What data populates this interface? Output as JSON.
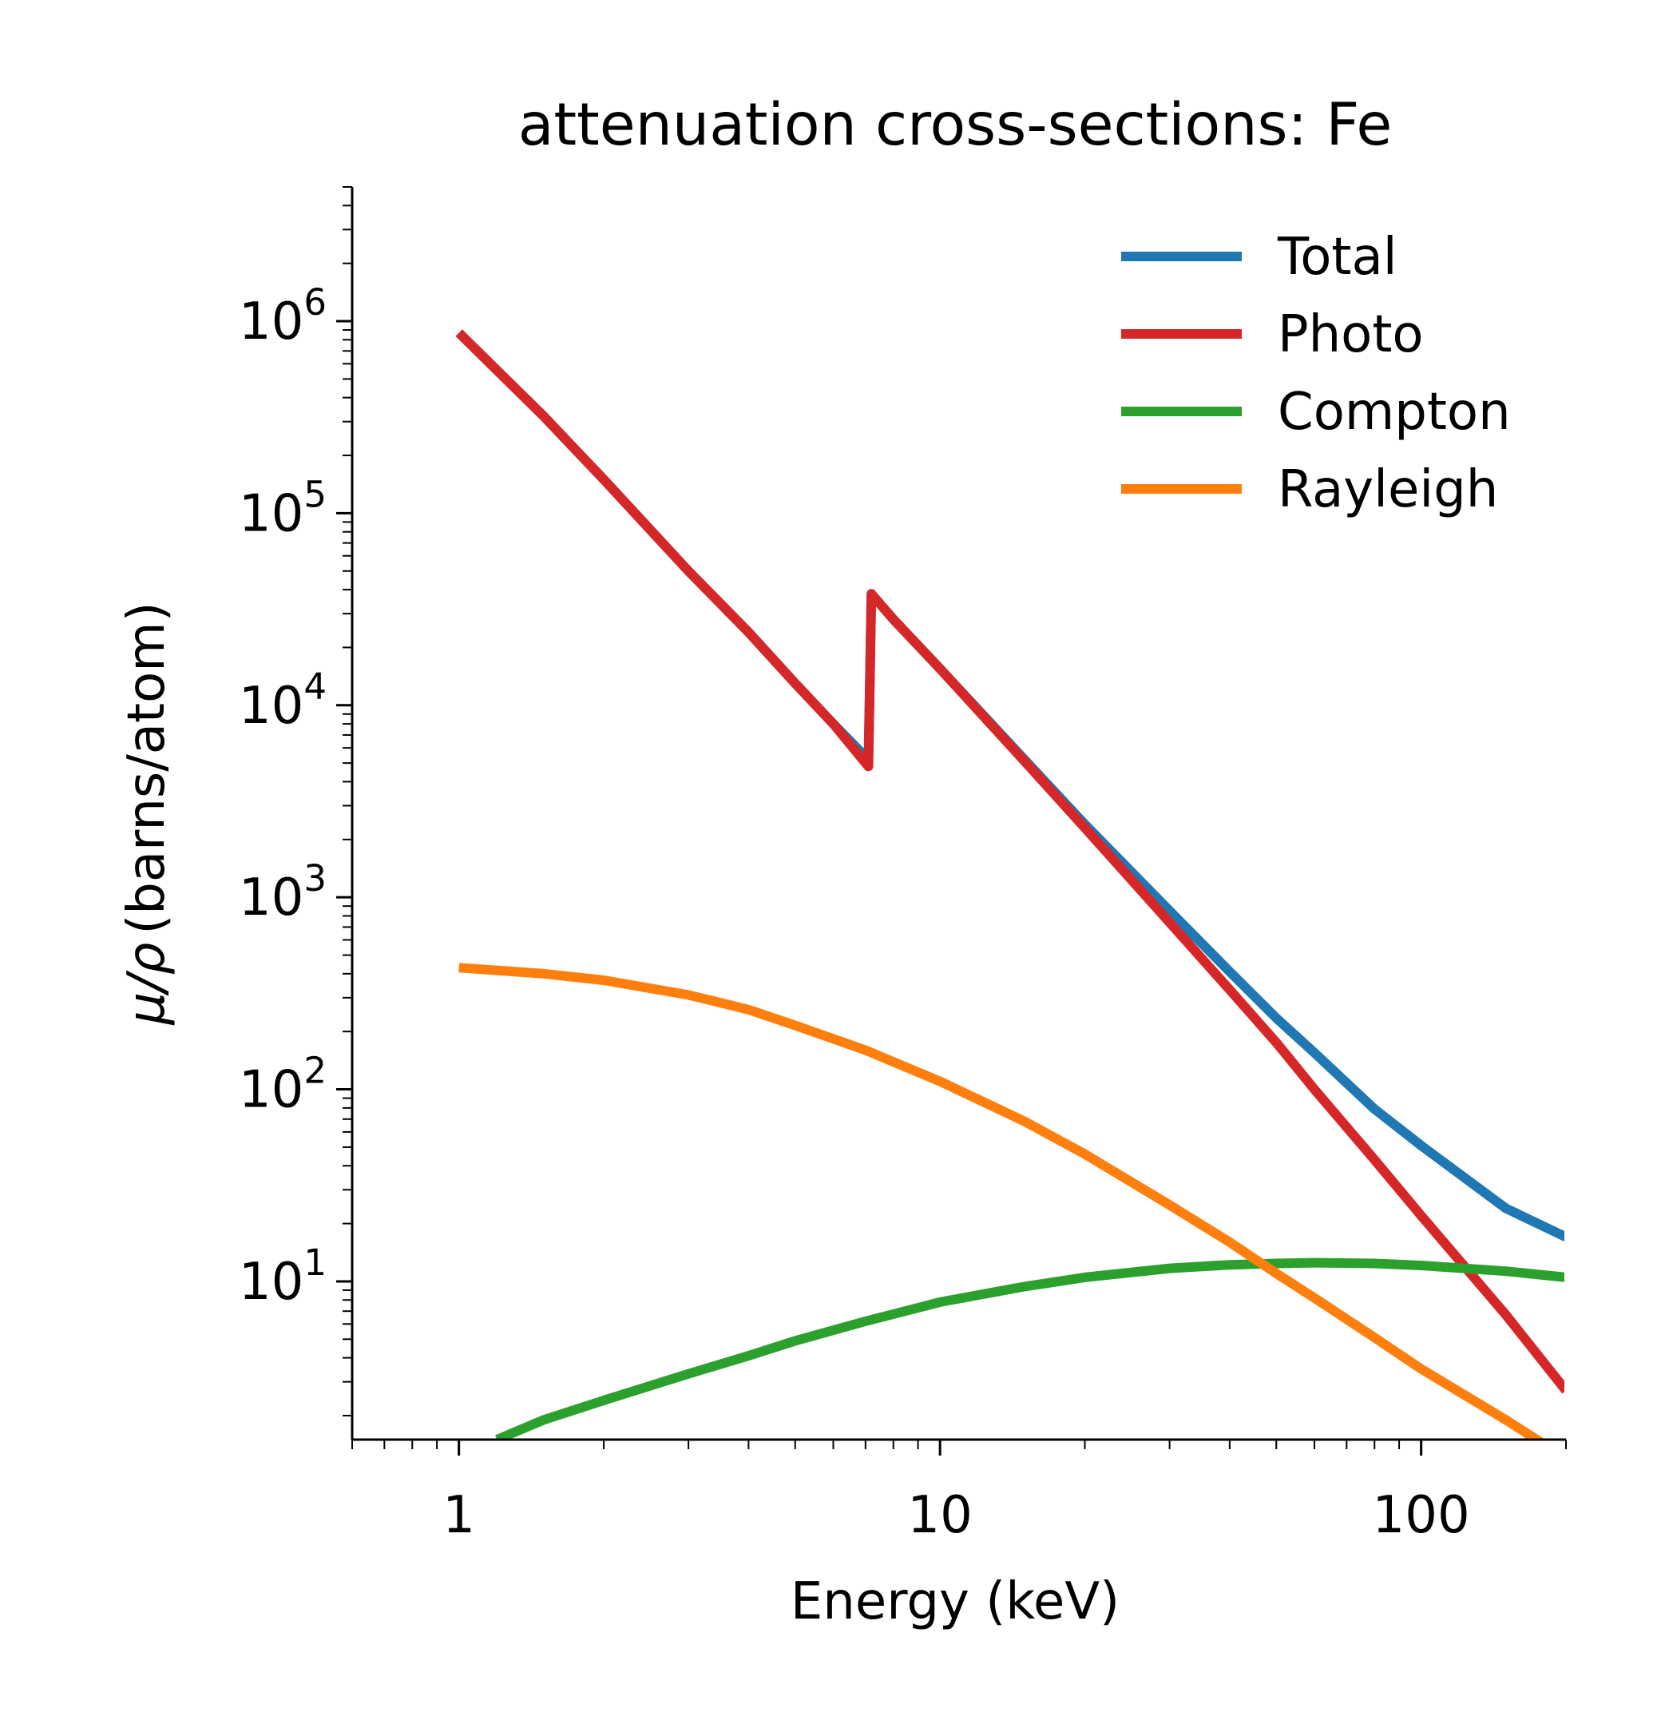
{
  "chart_data": {
    "type": "line",
    "title": "attenuation cross-sections: Fe",
    "xlabel": "Energy (keV)",
    "ylabel_main": "μ/ρ",
    "ylabel_unit": "(barns/atom)",
    "xscale": "log",
    "yscale": "log",
    "xlim": [
      0.6,
      200
    ],
    "ylim": [
      1.5,
      5000000
    ],
    "x_ticks": [
      {
        "value": 1,
        "label": "1"
      },
      {
        "value": 10,
        "label": "10"
      },
      {
        "value": 100,
        "label": "100"
      }
    ],
    "y_ticks": [
      {
        "value": 10,
        "base": "10",
        "exp": "1"
      },
      {
        "value": 100,
        "base": "10",
        "exp": "2"
      },
      {
        "value": 1000,
        "base": "10",
        "exp": "3"
      },
      {
        "value": 10000,
        "base": "10",
        "exp": "4"
      },
      {
        "value": 100000,
        "base": "10",
        "exp": "5"
      },
      {
        "value": 1000000,
        "base": "10",
        "exp": "6"
      }
    ],
    "grid": false,
    "legend_position": "top-right",
    "series": [
      {
        "name": "Total",
        "color": "#1f77b4",
        "x": [
          1,
          1.5,
          2,
          3,
          4,
          5,
          6,
          7.1,
          7.2,
          8,
          10,
          15,
          20,
          30,
          40,
          50,
          60,
          80,
          100,
          150,
          200
        ],
        "y": [
          870000,
          320000,
          150000,
          50000,
          24000,
          13000,
          8000,
          5200,
          38000,
          28000,
          15500,
          5200,
          2400,
          850,
          410,
          235,
          155,
          79,
          51,
          24,
          17
        ]
      },
      {
        "name": "Photo",
        "color": "#d62728",
        "x": [
          1,
          1.5,
          2,
          3,
          4,
          5,
          6,
          7.1,
          7.2,
          8,
          10,
          15,
          20,
          30,
          40,
          50,
          60,
          80,
          100,
          150,
          200
        ],
        "y": [
          870000,
          320000,
          150000,
          50000,
          24000,
          13000,
          8000,
          4800,
          38000,
          28000,
          15500,
          5100,
          2300,
          740,
          330,
          175,
          100,
          43,
          22,
          6.7,
          2.7
        ]
      },
      {
        "name": "Compton",
        "color": "#2ca02c",
        "x": [
          1.2,
          1.5,
          2,
          3,
          4,
          5,
          7,
          10,
          15,
          20,
          30,
          40,
          50,
          60,
          80,
          100,
          150,
          200
        ],
        "y": [
          1.5,
          1.9,
          2.4,
          3.3,
          4.1,
          4.9,
          6.2,
          7.8,
          9.4,
          10.5,
          11.7,
          12.2,
          12.4,
          12.5,
          12.4,
          12.1,
          11.3,
          10.5
        ]
      },
      {
        "name": "Rayleigh",
        "color": "#ff7f0e",
        "x": [
          1,
          1.5,
          2,
          3,
          4,
          5,
          7,
          10,
          15,
          20,
          30,
          40,
          50,
          60,
          80,
          100,
          150,
          190
        ],
        "y": [
          430,
          400,
          370,
          310,
          260,
          215,
          160,
          110,
          68,
          46,
          25,
          16,
          11,
          8.2,
          5.1,
          3.5,
          1.9,
          1.3
        ]
      }
    ]
  }
}
